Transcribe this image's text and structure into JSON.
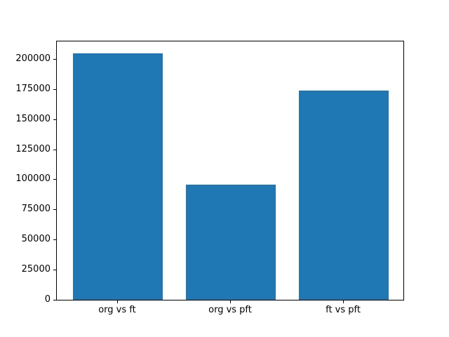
{
  "chart_data": {
    "type": "bar",
    "categories": [
      "org vs ft",
      "org vs pft",
      "ft vs pft"
    ],
    "values": [
      204800,
      95300,
      173800
    ],
    "title": "",
    "xlabel": "",
    "ylabel": "",
    "ylim": [
      0,
      215040
    ],
    "yticks": [
      0,
      25000,
      50000,
      75000,
      100000,
      125000,
      150000,
      175000,
      200000
    ],
    "bar_width_fraction": 0.8,
    "grid": false,
    "legend": null
  },
  "colors": {
    "bar": "#1f77b4",
    "axis": "#000000",
    "text": "#000000",
    "background": "#ffffff"
  }
}
